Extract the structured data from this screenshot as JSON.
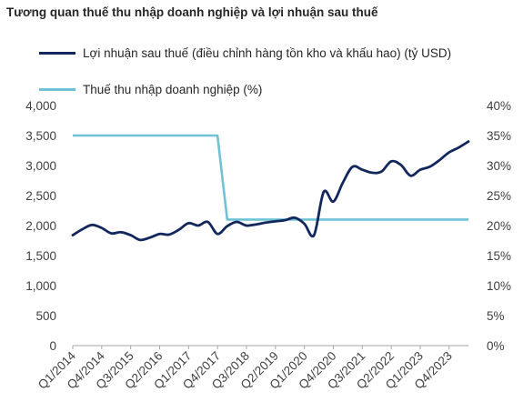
{
  "chart_data": {
    "type": "line",
    "title": "Tương quan thuế thu nhập doanh nghiệp và lợi nhuận sau thuế",
    "colors": {
      "profit": "#12285c",
      "tax": "#6fc2d6",
      "axis": "#a6a6a6"
    },
    "legend_position": "top-left",
    "grid": false,
    "x_tick_labels": [
      "Q1/2014",
      "Q4/2014",
      "Q3/2015",
      "Q2/2016",
      "Q1/2017",
      "Q4/2017",
      "Q3/2018",
      "Q2/2019",
      "Q1/2020",
      "Q4/2020",
      "Q3/2021",
      "Q2/2022",
      "Q1/2023",
      "Q4/2023"
    ],
    "x_tick_every": 3,
    "x": [
      "Q1/2014",
      "Q2/2014",
      "Q3/2014",
      "Q4/2014",
      "Q1/2015",
      "Q2/2015",
      "Q3/2015",
      "Q4/2015",
      "Q1/2016",
      "Q2/2016",
      "Q3/2016",
      "Q4/2016",
      "Q1/2017",
      "Q2/2017",
      "Q3/2017",
      "Q4/2017",
      "Q1/2018",
      "Q2/2018",
      "Q3/2018",
      "Q4/2018",
      "Q1/2019",
      "Q2/2019",
      "Q3/2019",
      "Q4/2019",
      "Q1/2020",
      "Q2/2020",
      "Q3/2020",
      "Q4/2020",
      "Q1/2021",
      "Q2/2021",
      "Q3/2021",
      "Q4/2021",
      "Q1/2022",
      "Q2/2022",
      "Q3/2022",
      "Q4/2022",
      "Q1/2023",
      "Q2/2023",
      "Q3/2023",
      "Q4/2023",
      "Q1/2024",
      "Q2/2024"
    ],
    "y_left": {
      "ticks": [
        "0",
        "500",
        "1,000",
        "1,500",
        "2,000",
        "2,500",
        "3,000",
        "3,500",
        "4,000"
      ],
      "range": [
        0,
        4000
      ]
    },
    "y_right": {
      "ticks": [
        "0%",
        "5%",
        "10%",
        "15%",
        "20%",
        "25%",
        "30%",
        "35%",
        "40%"
      ],
      "range": [
        0,
        40
      ]
    },
    "series": [
      {
        "name": "Lợi nhuận sau thuế (điều chỉnh hàng tồn kho và khấu hao) (tỷ USD)",
        "axis": "left",
        "values": [
          1840,
          1940,
          2010,
          1960,
          1870,
          1890,
          1840,
          1760,
          1800,
          1860,
          1850,
          1930,
          2040,
          2000,
          2060,
          1860,
          1990,
          2060,
          2000,
          2020,
          2050,
          2070,
          2090,
          2130,
          2030,
          1840,
          2560,
          2400,
          2720,
          2980,
          2930,
          2880,
          2900,
          3070,
          3010,
          2830,
          2930,
          2980,
          3090,
          3220,
          3300,
          3400
        ]
      },
      {
        "name": "Thuế thu nhập doanh nghiệp (%)",
        "axis": "right",
        "values": [
          35,
          35,
          35,
          35,
          35,
          35,
          35,
          35,
          35,
          35,
          35,
          35,
          35,
          35,
          35,
          35,
          21,
          21,
          21,
          21,
          21,
          21,
          21,
          21,
          21,
          21,
          21,
          21,
          21,
          21,
          21,
          21,
          21,
          21,
          21,
          21,
          21,
          21,
          21,
          21,
          21,
          21
        ]
      }
    ]
  }
}
